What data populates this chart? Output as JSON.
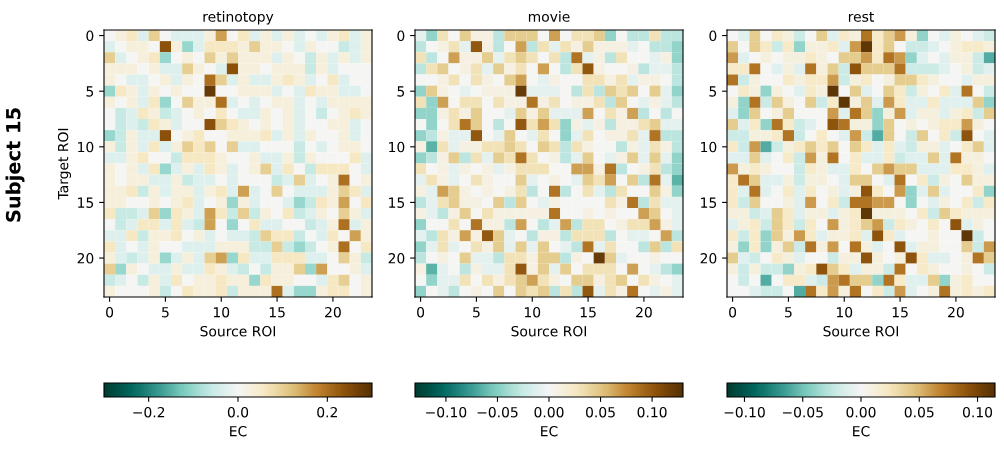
{
  "chart_data": [
    {
      "type": "heatmap",
      "title": "retinotopy",
      "xlabel": "Source ROI",
      "ylabel": "Target ROI",
      "clabel": "EC",
      "annotations": [
        "Subject 15"
      ],
      "categories": [
        "0",
        null,
        null,
        null,
        null,
        "5",
        null,
        null,
        null,
        null,
        "10",
        null,
        null,
        null,
        null,
        "15",
        null,
        null,
        null,
        null,
        "20",
        null,
        null,
        null
      ],
      "y_categories": [
        "0",
        null,
        null,
        null,
        null,
        "5",
        null,
        null,
        null,
        null,
        "10",
        null,
        null,
        null,
        null,
        "15",
        null,
        null,
        null,
        null,
        "20",
        null,
        null,
        null
      ],
      "clim": [
        -0.3,
        0.3
      ],
      "cticks": [
        {
          "value": -0.2,
          "label": "−0.2"
        },
        {
          "value": 0,
          "label": "0.0"
        },
        {
          "value": 0.2,
          "label": "0.2"
        }
      ],
      "cells": [
        [
          0,
          0.03,
          0.06,
          -0.03,
          0.1,
          0,
          -0.03,
          -0.03,
          -0.03,
          0.03,
          0.15,
          0,
          0.06,
          -0.03,
          0.03,
          -0.03,
          0.03,
          -0.03,
          0,
          -0.03,
          0.03,
          0.06,
          -0.03,
          0.03
        ],
        [
          -0.03,
          0,
          0.03,
          0.03,
          0,
          0.24,
          0.03,
          -0.1,
          -0.03,
          0.06,
          0.06,
          0.06,
          0.03,
          0.1,
          0.03,
          0.03,
          0,
          -0.03,
          0.03,
          0,
          0,
          -0.06,
          -0.03,
          0.03
        ],
        [
          0.1,
          -0.03,
          0,
          0.03,
          0.06,
          -0.1,
          0,
          0.03,
          0,
          0.1,
          0.03,
          0.1,
          0.03,
          0.03,
          0.03,
          -0.03,
          0.03,
          0,
          -0.06,
          0.03,
          -0.03,
          0.03,
          -0.03,
          0.03
        ],
        [
          0.03,
          0.03,
          0.03,
          0,
          0.03,
          -0.03,
          -0.03,
          0.1,
          0.03,
          0,
          -0.03,
          0.24,
          0.03,
          0.03,
          0,
          0.03,
          0.03,
          0.03,
          -0.06,
          0.03,
          -0.03,
          0,
          0,
          0
        ],
        [
          0.03,
          0,
          -0.03,
          -0.03,
          0,
          0.03,
          -0.03,
          0.03,
          0,
          0.2,
          0.1,
          -0.03,
          0.03,
          -0.03,
          -0.03,
          0.03,
          0.06,
          0.03,
          -0.03,
          0,
          0.06,
          -0.03,
          0,
          0
        ],
        [
          -0.1,
          0.06,
          0.03,
          -0.03,
          0.03,
          0,
          0.03,
          0,
          0,
          0.28,
          0,
          0,
          0.03,
          0.03,
          0.03,
          -0.03,
          0,
          -0.03,
          0.06,
          0.03,
          0.03,
          -0.03,
          -0.03,
          0
        ],
        [
          0.03,
          0,
          0.03,
          -0.03,
          0.06,
          -0.1,
          0,
          0.1,
          0.03,
          0.03,
          0.2,
          -0.03,
          0,
          -0.03,
          0,
          0.03,
          0.03,
          -0.03,
          0,
          -0.03,
          0.03,
          0.03,
          0.03,
          0.03
        ],
        [
          0,
          -0.06,
          -0.03,
          0.06,
          0.03,
          -0.06,
          -0.03,
          0,
          0.03,
          0,
          0.06,
          0,
          -0.03,
          -0.03,
          0.03,
          0,
          0.03,
          -0.03,
          0,
          -0.06,
          0,
          0.03,
          0.06,
          0.03
        ],
        [
          0,
          -0.06,
          -0.03,
          -0.06,
          0.06,
          0.03,
          -0.03,
          0,
          0,
          0.24,
          0.1,
          0.06,
          0.03,
          0,
          0.03,
          0,
          0.03,
          -0.03,
          0,
          0,
          0.03,
          0.03,
          -0.03,
          0
        ],
        [
          -0.1,
          -0.06,
          0.03,
          -0.03,
          -0.03,
          0.24,
          0,
          0.03,
          0.06,
          0,
          0,
          0.03,
          0.03,
          0.03,
          0.06,
          -0.03,
          0.03,
          -0.03,
          0.03,
          0,
          0,
          0.03,
          -0.03,
          0
        ],
        [
          0.03,
          -0.06,
          0.03,
          -0.03,
          0.06,
          -0.03,
          0.03,
          0.1,
          0.06,
          0.1,
          0,
          0.1,
          -0.03,
          -0.03,
          0,
          0,
          0,
          -0.06,
          0,
          -0.03,
          0,
          0.03,
          0.03,
          0
        ],
        [
          -0.03,
          -0.03,
          0.03,
          0.06,
          0,
          0,
          -0.06,
          0.06,
          0.06,
          0.06,
          0.03,
          0,
          0,
          0.03,
          -0.03,
          -0.03,
          0.03,
          -0.06,
          0.03,
          0,
          0,
          0,
          0.06,
          -0.03
        ],
        [
          0.03,
          0,
          0.03,
          -0.03,
          0.06,
          -0.1,
          -0.03,
          0.03,
          -0.03,
          0.06,
          0.03,
          -0.03,
          0,
          0.03,
          0.1,
          -0.03,
          0.06,
          0,
          -0.06,
          0.06,
          0.06,
          0.06,
          0,
          -0.03
        ],
        [
          0.03,
          0,
          0.03,
          0.03,
          -0.03,
          -0.03,
          0.03,
          -0.06,
          -0.03,
          -0.03,
          0,
          -0.03,
          0,
          0,
          0,
          -0.06,
          -0.03,
          0.1,
          -0.03,
          0,
          0.03,
          0.2,
          0,
          0.03
        ],
        [
          0.03,
          0.03,
          0.06,
          -0.06,
          0.03,
          -0.03,
          0.03,
          0.03,
          -0.03,
          0.03,
          0.06,
          -0.03,
          0.15,
          -0.03,
          0,
          0.1,
          0,
          -0.03,
          -0.03,
          -0.03,
          0.03,
          0.1,
          0.06,
          -0.03
        ],
        [
          0.03,
          0.03,
          0,
          0,
          0.03,
          0,
          0.03,
          0.06,
          -0.03,
          0,
          0.03,
          -0.1,
          0.03,
          -0.03,
          0,
          0,
          -0.03,
          -0.1,
          -0.06,
          0.06,
          0.03,
          0.15,
          0,
          0.06
        ],
        [
          0.06,
          -0.06,
          -0.06,
          -0.03,
          0.1,
          -0.1,
          0.06,
          0.03,
          -0.03,
          0.15,
          0.06,
          -0.06,
          0.1,
          -0.06,
          0.03,
          0,
          0.06,
          -0.06,
          -0.03,
          0.03,
          0,
          0.1,
          0.03,
          -0.03
        ],
        [
          0,
          -0.06,
          -0.03,
          0.06,
          0.06,
          -0.03,
          0.06,
          -0.03,
          -0.06,
          0.15,
          0,
          -0.1,
          0,
          0.06,
          -0.03,
          -0.03,
          0,
          0,
          -0.06,
          -0.03,
          0.03,
          0.2,
          -0.03,
          0.03
        ],
        [
          -0.03,
          -0.03,
          0.06,
          -0.06,
          0.03,
          0.03,
          0.06,
          0,
          0.03,
          -0.03,
          0,
          -0.03,
          -0.03,
          -0.06,
          0.1,
          0.06,
          0.06,
          -0.06,
          0,
          -0.03,
          0.06,
          0,
          0.15,
          0.03
        ],
        [
          0.06,
          -0.03,
          0,
          -0.03,
          0.03,
          0,
          0,
          -0.03,
          -0.03,
          -0.03,
          0.03,
          0.03,
          0.03,
          -0.06,
          -0.06,
          0.1,
          -0.06,
          -0.1,
          -0.06,
          0,
          0.03,
          0.2,
          0,
          0.06
        ],
        [
          0.03,
          -0.03,
          -0.06,
          -0.03,
          0.03,
          -0.1,
          -0.03,
          0.03,
          -0.03,
          0.1,
          0.15,
          -0.1,
          0.06,
          -0.03,
          -0.03,
          0.06,
          0.06,
          0.06,
          -0.03,
          -0.03,
          0,
          0.1,
          0.03,
          -0.06
        ],
        [
          0.1,
          -0.1,
          0.03,
          0,
          -0.03,
          -0.03,
          0.03,
          -0.03,
          -0.03,
          0.06,
          0.03,
          -0.03,
          -0.06,
          0,
          -0.06,
          0.03,
          0.03,
          0.1,
          -0.1,
          0.15,
          0,
          0,
          0.03,
          -0.03
        ],
        [
          -0.06,
          -0.03,
          0,
          -0.06,
          0.03,
          -0.03,
          0.06,
          0,
          0.03,
          0.03,
          0.06,
          0.03,
          0.03,
          -0.1,
          0.06,
          0.03,
          0.03,
          0,
          0,
          -0.03,
          0.06,
          0.1,
          0,
          0.03
        ],
        [
          0.03,
          0,
          0,
          0,
          0.03,
          -0.06,
          0,
          0.06,
          0.03,
          0.03,
          0.06,
          -0.06,
          0.03,
          0.03,
          0.03,
          0.2,
          -0.03,
          -0.1,
          -0.1,
          0.03,
          0.06,
          0.06,
          0,
          0.03
        ]
      ]
    },
    {
      "type": "heatmap",
      "title": "movie",
      "xlabel": "Source ROI",
      "clabel": "EC",
      "categories": [
        "0",
        null,
        null,
        null,
        null,
        "5",
        null,
        null,
        null,
        null,
        "10",
        null,
        null,
        null,
        null,
        "15",
        null,
        null,
        null,
        null,
        "20",
        null,
        null,
        null
      ],
      "y_categories": [
        "0",
        null,
        null,
        null,
        null,
        "5",
        null,
        null,
        null,
        null,
        "10",
        null,
        null,
        null,
        null,
        "15",
        null,
        null,
        null,
        null,
        "20",
        null,
        null,
        null
      ],
      "clim": [
        -0.13,
        0.13
      ],
      "cticks": [
        {
          "value": -0.1,
          "label": "−0.10"
        },
        {
          "value": -0.05,
          "label": "−0.05"
        },
        {
          "value": 0,
          "label": "0.00"
        },
        {
          "value": 0.05,
          "label": "0.05"
        },
        {
          "value": 0.1,
          "label": "0.10"
        }
      ],
      "cells": [
        [
          -0.01,
          -0.045,
          0.03,
          0,
          0.045,
          0.01,
          0.01,
          -0.03,
          0.045,
          0.045,
          0.045,
          0,
          0.065,
          0,
          0.03,
          0.03,
          0.045,
          -0.045,
          0,
          -0.03,
          -0.03,
          0.03,
          -0.03,
          -0.03
        ],
        [
          -0.03,
          0,
          0.01,
          0.03,
          -0.01,
          0.1,
          0.01,
          -0.03,
          0,
          0.065,
          -0.03,
          0.03,
          -0.01,
          0.03,
          0.01,
          0.045,
          0.01,
          0.01,
          0.01,
          -0.01,
          0,
          -0.03,
          -0.03,
          -0.045
        ],
        [
          0.03,
          -0.03,
          0,
          0.065,
          0.01,
          0.01,
          0.045,
          -0.01,
          0.03,
          0.045,
          0.03,
          0,
          0.03,
          -0.03,
          0.085,
          -0.01,
          0.01,
          -0.03,
          0.03,
          0,
          0,
          -0.01,
          0.01,
          -0.045
        ],
        [
          -0.03,
          0.03,
          0.045,
          0,
          0.01,
          0.03,
          -0.01,
          0.045,
          0.01,
          0.03,
          0,
          0.065,
          0,
          -0.03,
          0.03,
          0.1,
          0.01,
          0,
          0,
          0.01,
          -0.03,
          -0.01,
          -0.01,
          -0.03
        ],
        [
          0,
          0,
          0.01,
          0.03,
          0,
          0.03,
          0.01,
          0,
          0.045,
          0.065,
          0,
          -0.01,
          0.01,
          0,
          0,
          0.03,
          0.03,
          0.01,
          0.03,
          -0.01,
          0.01,
          0.01,
          0,
          -0.03
        ],
        [
          -0.045,
          0.045,
          0.01,
          0,
          -0.01,
          0,
          0.01,
          0.01,
          0.01,
          0.12,
          -0.01,
          -0.01,
          -0.01,
          0,
          -0.03,
          0.03,
          -0.03,
          0.045,
          0.03,
          0.045,
          0,
          0.045,
          -0.01,
          -0.045
        ],
        [
          0.03,
          -0.045,
          0.065,
          0,
          0.03,
          0.03,
          0,
          0.03,
          0.01,
          0.01,
          0.085,
          0.01,
          0.03,
          0,
          0.01,
          0.01,
          0.03,
          -0.03,
          0.045,
          0,
          -0.01,
          0.01,
          -0.01,
          -0.03
        ],
        [
          -0.045,
          -0.045,
          0.01,
          0.03,
          0.01,
          0.045,
          0,
          0,
          -0.01,
          0.045,
          0.01,
          0.045,
          -0.01,
          -0.01,
          -0.01,
          0.065,
          0,
          0.03,
          0.01,
          0.065,
          -0.03,
          0,
          -0.03,
          0
        ],
        [
          0,
          -0.045,
          0,
          0.03,
          0.085,
          0.045,
          0,
          -0.03,
          0,
          0.1,
          0.03,
          0.065,
          0.03,
          -0.045,
          0.01,
          -0.01,
          0.01,
          -0.03,
          0.01,
          0.01,
          0.03,
          0.045,
          -0.01,
          -0.01
        ],
        [
          -0.045,
          -0.03,
          0.01,
          -0.01,
          -0.01,
          0.1,
          0,
          -0.01,
          0.045,
          0,
          -0.01,
          0.03,
          0,
          -0.045,
          -0.01,
          0.03,
          0,
          0.01,
          0.01,
          0.03,
          -0.01,
          0.085,
          -0.03,
          -0.03
        ],
        [
          0.01,
          -0.065,
          0.03,
          -0.01,
          0.01,
          0.01,
          0.03,
          0.03,
          0.045,
          0.03,
          0,
          0.045,
          0.03,
          -0.03,
          0.03,
          0.01,
          0,
          0,
          -0.03,
          0.01,
          -0.01,
          0.03,
          0.01,
          -0.03
        ],
        [
          -0.045,
          -0.03,
          0.01,
          0.045,
          -0.03,
          0.03,
          -0.01,
          0.045,
          0.03,
          0.085,
          0.03,
          0,
          0.01,
          -0.03,
          -0.01,
          0.045,
          0,
          -0.01,
          0.01,
          0.045,
          -0.01,
          0.045,
          -0.01,
          -0.045
        ],
        [
          0.03,
          0,
          0.01,
          -0.01,
          0.01,
          0,
          0.01,
          -0.01,
          0.01,
          0.03,
          0.03,
          0.03,
          0,
          0,
          0.065,
          0.065,
          0.01,
          0.085,
          -0.03,
          0,
          0.01,
          0.03,
          -0.03,
          -0.045
        ],
        [
          -0.01,
          0.03,
          0.01,
          -0.01,
          0,
          0.03,
          0.01,
          0,
          0,
          0.045,
          -0.01,
          0,
          0.01,
          0,
          -0.01,
          0.045,
          0.03,
          0.065,
          0,
          0.045,
          -0.03,
          0.085,
          -0.01,
          -0.065
        ],
        [
          0.01,
          -0.01,
          0.065,
          0.045,
          0.01,
          0,
          0.01,
          0,
          0.01,
          0.03,
          -0.03,
          0,
          0.085,
          -0.03,
          0,
          0.03,
          -0.01,
          -0.03,
          0.03,
          0,
          0,
          0.045,
          0.01,
          -0.045
        ],
        [
          -0.03,
          -0.01,
          0.03,
          0.045,
          0.01,
          0.01,
          0,
          0.045,
          -0.03,
          0.045,
          0,
          -0.01,
          0.01,
          0,
          0,
          0,
          0,
          0.03,
          0.01,
          0.085,
          -0.03,
          0.03,
          -0.01,
          -0.01
        ],
        [
          0.01,
          -0.01,
          -0.03,
          0.01,
          0.045,
          0,
          0.03,
          0.01,
          0.01,
          0.01,
          0.01,
          0.01,
          0.085,
          0,
          0,
          0.01,
          0,
          0.01,
          0,
          0,
          0.065,
          0.045,
          0,
          -0.01
        ],
        [
          -0.045,
          0,
          0,
          0.03,
          0,
          0.085,
          0.01,
          0.01,
          -0.03,
          0.065,
          0,
          -0.03,
          -0.01,
          0.065,
          -0.03,
          0.03,
          0.03,
          0,
          0.01,
          0.03,
          0.03,
          0.065,
          0.01,
          -0.01
        ],
        [
          -0.01,
          -0.03,
          0.03,
          0.01,
          0.065,
          0.01,
          0.1,
          0.045,
          -0.01,
          0,
          -0.03,
          0.01,
          0.01,
          -0.03,
          0.03,
          0.03,
          0.03,
          -0.03,
          0,
          -0.01,
          -0.01,
          0,
          0.065,
          -0.03
        ],
        [
          -0.045,
          -0.01,
          0.03,
          -0.01,
          0,
          0.03,
          0.01,
          0.045,
          -0.01,
          0.045,
          -0.01,
          0.045,
          0,
          -0.01,
          -0.03,
          0.085,
          -0.01,
          0.03,
          0,
          0,
          -0.03,
          0.045,
          -0.03,
          0.03
        ],
        [
          -0.03,
          0,
          0.01,
          0,
          0.045,
          -0.01,
          -0.01,
          -0.03,
          0.03,
          0.03,
          0.01,
          0.045,
          0.045,
          -0.03,
          0.01,
          0,
          0.12,
          0.045,
          -0.01,
          0,
          0,
          0.01,
          0,
          0
        ],
        [
          0.01,
          -0.065,
          -0.01,
          0,
          -0.03,
          0.01,
          -0.01,
          -0.01,
          0.03,
          0.1,
          0.01,
          0.045,
          -0.01,
          0.045,
          0,
          0.03,
          0.03,
          0.03,
          0,
          0.065,
          0,
          -0.01,
          -0.03,
          -0.045
        ],
        [
          0,
          -0.045,
          -0.01,
          -0.01,
          0.03,
          0,
          0.03,
          0.01,
          0.03,
          0.045,
          0.065,
          0.03,
          0.01,
          0,
          0.045,
          0.045,
          0.01,
          0.03,
          0.045,
          0,
          0.03,
          0.01,
          0,
          -0.01
        ],
        [
          -0.045,
          0,
          -0.01,
          -0.03,
          0,
          0.01,
          0,
          0.045,
          0,
          0.045,
          0.03,
          0.045,
          -0.03,
          0.03,
          -0.03,
          0.1,
          -0.01,
          0.03,
          0.01,
          0.085,
          0,
          -0.01,
          0.01,
          -0.01
        ]
      ]
    },
    {
      "type": "heatmap",
      "title": "rest",
      "xlabel": "Source ROI",
      "clabel": "EC",
      "categories": [
        "0",
        null,
        null,
        null,
        null,
        "5",
        null,
        null,
        null,
        null,
        "10",
        null,
        null,
        null,
        null,
        "15",
        null,
        null,
        null,
        null,
        "20",
        null,
        null,
        null
      ],
      "y_categories": [
        "0",
        null,
        null,
        null,
        null,
        "5",
        null,
        null,
        null,
        null,
        "10",
        null,
        null,
        null,
        null,
        "15",
        null,
        null,
        null,
        null,
        "20",
        null,
        null,
        null
      ],
      "clim": [
        -0.115,
        0.115
      ],
      "cticks": [
        {
          "value": -0.1,
          "label": "−0.10"
        },
        {
          "value": -0.05,
          "label": "−0.05"
        },
        {
          "value": 0,
          "label": "0.00"
        },
        {
          "value": 0.05,
          "label": "0.05"
        },
        {
          "value": 0.1,
          "label": "0.10"
        }
      ],
      "cells": [
        [
          0,
          -0.01,
          0.04,
          0,
          0.02,
          0.01,
          -0.02,
          0,
          0.04,
          -0.01,
          0.02,
          0.01,
          0.075,
          0.02,
          0.04,
          0.06,
          0.01,
          -0.04,
          0,
          -0.01,
          0.01,
          0,
          -0.01,
          -0.02
        ],
        [
          0.04,
          0,
          0.04,
          0.02,
          -0.02,
          0.02,
          -0.04,
          0.01,
          0.01,
          0.02,
          -0.01,
          0.06,
          0.11,
          0.02,
          0.04,
          0,
          -0.02,
          -0.02,
          -0.01,
          0,
          0.01,
          0.02,
          0.02,
          0.01
        ],
        [
          0.06,
          -0.01,
          0,
          0.01,
          0,
          0.01,
          0.01,
          0.02,
          0.01,
          0,
          0.04,
          0.04,
          0.06,
          0.02,
          0.075,
          0.06,
          -0.04,
          -0.01,
          0,
          -0.01,
          0.01,
          0.01,
          -0.02,
          -0.06
        ],
        [
          0.02,
          0.02,
          0.075,
          0,
          -0.01,
          0.01,
          -0.01,
          0.075,
          0.01,
          0.04,
          -0.02,
          0.09,
          0.04,
          0.04,
          0.04,
          0.075,
          -0.02,
          -0.02,
          -0.02,
          -0.01,
          0,
          0.01,
          -0.02,
          -0.01
        ],
        [
          0.075,
          -0.02,
          0.01,
          0,
          0,
          0.02,
          0.01,
          0.02,
          0.02,
          0.06,
          -0.02,
          0.01,
          0.02,
          0,
          0.01,
          0.04,
          0.04,
          0.02,
          0.01,
          0,
          0,
          -0.01,
          0.01,
          0.01
        ],
        [
          0,
          0.02,
          0.01,
          -0.04,
          0.01,
          0,
          -0.01,
          0.02,
          0.01,
          0.11,
          0,
          0.04,
          -0.01,
          0,
          0.04,
          0.02,
          -0.02,
          0.01,
          0,
          0.02,
          -0.01,
          0.075,
          0,
          -0.02
        ],
        [
          0.01,
          -0.04,
          0.075,
          -0.02,
          0.04,
          0.01,
          0,
          0.04,
          -0.02,
          0.02,
          0.11,
          0.01,
          0.04,
          -0.01,
          0.06,
          0.02,
          -0.01,
          -0.01,
          0.02,
          -0.01,
          -0.01,
          -0.01,
          0.04,
          -0.04
        ],
        [
          -0.01,
          -0.04,
          0.04,
          0,
          0.01,
          0.04,
          0,
          0,
          0,
          0.06,
          -0.01,
          0.075,
          0.04,
          -0.04,
          0.01,
          0.06,
          -0.01,
          0.01,
          0.01,
          -0.01,
          0.01,
          0.02,
          -0.02,
          0.04
        ],
        [
          0.04,
          -0.01,
          0.02,
          -0.04,
          0.075,
          0.02,
          -0.02,
          -0.01,
          0,
          0.09,
          0.075,
          0.01,
          0.01,
          -0.04,
          0.04,
          0,
          0.01,
          0,
          0.01,
          0.02,
          0.02,
          0.06,
          0.01,
          0
        ],
        [
          -0.02,
          -0.02,
          0.01,
          0.01,
          0.02,
          0.075,
          -0.02,
          0,
          0.02,
          0,
          -0.01,
          0.06,
          -0.02,
          -0.06,
          0.04,
          0,
          -0.02,
          0.04,
          0,
          0.02,
          -0.02,
          0.09,
          0,
          -0.01
        ],
        [
          0.02,
          -0.02,
          0.06,
          -0.06,
          -0.02,
          0.01,
          0.02,
          0.04,
          0.02,
          0.04,
          0,
          0.04,
          0.02,
          -0.01,
          0.02,
          -0.01,
          -0.02,
          0.01,
          0.01,
          -0.01,
          0,
          0.02,
          0.04,
          -0.01
        ],
        [
          -0.01,
          -0.01,
          0.04,
          -0.01,
          0,
          0.02,
          -0.02,
          0.06,
          0.01,
          0.075,
          0,
          0.02,
          -0.01,
          -0.01,
          0.02,
          -0.02,
          -0.01,
          -0.01,
          0.04,
          -0.01,
          0.075,
          0.01,
          0.01,
          0
        ],
        [
          0.06,
          0.01,
          0.02,
          0.01,
          0,
          0,
          -0.02,
          0.02,
          0.01,
          -0.01,
          -0.01,
          0.02,
          0,
          0.04,
          0.06,
          0.04,
          0.04,
          -0.01,
          -0.01,
          -0.01,
          0.02,
          0.02,
          0.01,
          -0.01
        ],
        [
          0.02,
          0.075,
          0.04,
          -0.01,
          -0.01,
          0.01,
          -0.02,
          0.01,
          0.01,
          0,
          -0.01,
          0.04,
          0.04,
          0,
          -0.01,
          0.075,
          0,
          0.02,
          -0.02,
          0.01,
          0,
          0.04,
          0.01,
          0.01
        ],
        [
          0.02,
          -0.01,
          0.075,
          -0.01,
          0,
          0.02,
          -0.01,
          0.02,
          0,
          0.01,
          -0.01,
          0.01,
          0.09,
          0.02,
          0,
          0.06,
          -0.04,
          -0.01,
          0.04,
          -0.01,
          0,
          0,
          0.02,
          -0.04
        ],
        [
          0.02,
          -0.02,
          0.04,
          0,
          0,
          0.01,
          -0.01,
          0.06,
          0,
          0.02,
          -0.02,
          0.075,
          0.075,
          0.06,
          0.06,
          0,
          -0.04,
          0,
          -0.01,
          0.01,
          0,
          0.02,
          -0.02,
          0.02
        ],
        [
          0.01,
          0.01,
          -0.02,
          -0.01,
          0.04,
          0.02,
          -0.01,
          0.01,
          0.01,
          -0.01,
          0.01,
          0.02,
          0.11,
          0.01,
          0.01,
          0.01,
          0,
          0.02,
          -0.02,
          0.04,
          0.02,
          0.01,
          0.01,
          0.01
        ],
        [
          -0.01,
          0.01,
          0.02,
          -0.02,
          0.04,
          0.02,
          -0.02,
          0.02,
          0,
          0.06,
          0.01,
          0.02,
          0.04,
          0.06,
          -0.02,
          0.02,
          0.01,
          0,
          0.02,
          0,
          0.09,
          -0.01,
          0.01,
          0
        ],
        [
          0.02,
          -0.02,
          0.02,
          -0.04,
          0.04,
          0.01,
          0.06,
          0.02,
          -0.01,
          0.01,
          0.01,
          0.02,
          -0.01,
          0.09,
          0.02,
          -0.01,
          0,
          0,
          0.01,
          0,
          0,
          0.11,
          -0.02,
          0
        ],
        [
          0.01,
          -0.04,
          0.02,
          -0.04,
          0.01,
          0.04,
          -0.02,
          0.075,
          0.01,
          0.06,
          0,
          0.075,
          0.01,
          -0.01,
          0,
          0.09,
          -0.01,
          0.01,
          0.01,
          0,
          0,
          0.04,
          -0.02,
          0.06
        ],
        [
          0.04,
          -0.01,
          -0.02,
          0,
          0.02,
          0.01,
          -0.01,
          0,
          0,
          -0.02,
          0.01,
          0.01,
          0.09,
          0.01,
          0,
          0.01,
          0.09,
          0.02,
          -0.01,
          -0.01,
          0,
          0.01,
          0.075,
          0.04
        ],
        [
          0.01,
          -0.02,
          0.01,
          -0.02,
          -0.02,
          -0.04,
          0.01,
          0.02,
          0.09,
          0.04,
          0.02,
          -0.01,
          0.01,
          0.01,
          -0.02,
          0.075,
          0,
          0.02,
          0.01,
          0,
          0,
          0.01,
          0,
          -0.02
        ],
        [
          0,
          -0.02,
          0,
          -0.06,
          0,
          0.02,
          0.02,
          -0.01,
          -0.02,
          0.06,
          0.075,
          0.04,
          0.04,
          -0.04,
          0.075,
          0.02,
          -0.01,
          -0.01,
          0.04,
          -0.04,
          0.01,
          0.02,
          0,
          0
        ],
        [
          0,
          0,
          -0.01,
          -0.02,
          -0.02,
          0,
          -0.06,
          0.075,
          0.02,
          0.06,
          0.01,
          0.075,
          0,
          0.02,
          -0.02,
          0.06,
          -0.01,
          0,
          0.01,
          0.075,
          0.01,
          0.02,
          0.01,
          0.02
        ]
      ]
    }
  ]
}
